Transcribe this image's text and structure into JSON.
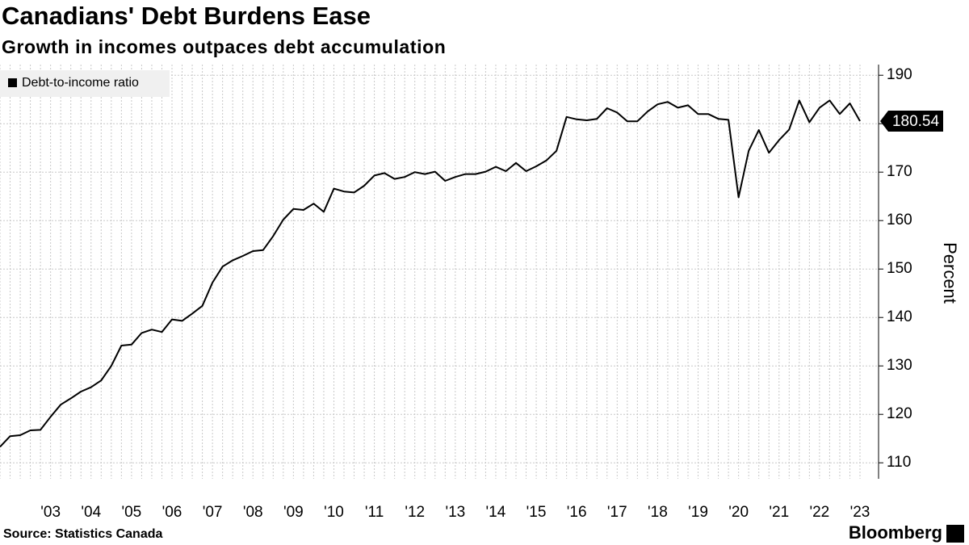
{
  "chart_data": {
    "type": "line",
    "title": "Canadians' Debt Burdens Ease",
    "subtitle": "Growth in incomes outpaces debt accumulation",
    "y_label": "Percent",
    "source": "Source: Statistics Canada",
    "brand": "Bloomberg",
    "categories": [
      null,
      null,
      null,
      null,
      null,
      "'03",
      null,
      null,
      null,
      "'04",
      null,
      null,
      null,
      "'05",
      null,
      null,
      null,
      "'06",
      null,
      null,
      null,
      "'07",
      null,
      null,
      null,
      "'08",
      null,
      null,
      null,
      "'09",
      null,
      null,
      null,
      "'10",
      null,
      null,
      null,
      "'11",
      null,
      null,
      null,
      "'12",
      null,
      null,
      null,
      "'13",
      null,
      null,
      null,
      "'14",
      null,
      null,
      null,
      "'15",
      null,
      null,
      null,
      "'16",
      null,
      null,
      null,
      "'17",
      null,
      null,
      null,
      "'18",
      null,
      null,
      null,
      "'19",
      null,
      null,
      null,
      "'20",
      null,
      null,
      null,
      "'21",
      null,
      null,
      null,
      "'22",
      null,
      null,
      null,
      "'23"
    ],
    "series": [
      {
        "name": "Debt-to-income ratio",
        "color": "#000000",
        "values": [
          113.3,
          115.5,
          115.7,
          116.7,
          116.8,
          119.5,
          122,
          123.3,
          124.7,
          125.6,
          127,
          130,
          134.2,
          134.4,
          136.8,
          137.5,
          137,
          139.6,
          139.3,
          140.8,
          142.4,
          147.2,
          150.5,
          151.8,
          152.7,
          153.7,
          153.9,
          156.8,
          160.2,
          162.4,
          162.2,
          163.5,
          161.8,
          166.6,
          166,
          165.8,
          167.2,
          169.3,
          169.8,
          168.6,
          169,
          170,
          169.6,
          170.1,
          168.2,
          169,
          169.6,
          169.6,
          170.1,
          171.1,
          170.2,
          171.9,
          170.2,
          171.2,
          172.4,
          174.4,
          181.4,
          180.9,
          180.7,
          181,
          183.2,
          182.3,
          180.5,
          180.5,
          182.5,
          184,
          184.5,
          183.3,
          183.8,
          182,
          182,
          181,
          180.8,
          164.8,
          174.4,
          178.7,
          174,
          176.6,
          178.8,
          184.8,
          180.3,
          183.3,
          184.8,
          182,
          184.2,
          180.54
        ]
      }
    ],
    "ylim": [
      106.7,
      192.2
    ],
    "yticks": [
      110,
      120,
      130,
      140,
      150,
      160,
      170,
      180,
      190
    ],
    "grid": true,
    "legend": "top-left",
    "last_value_label": true
  }
}
